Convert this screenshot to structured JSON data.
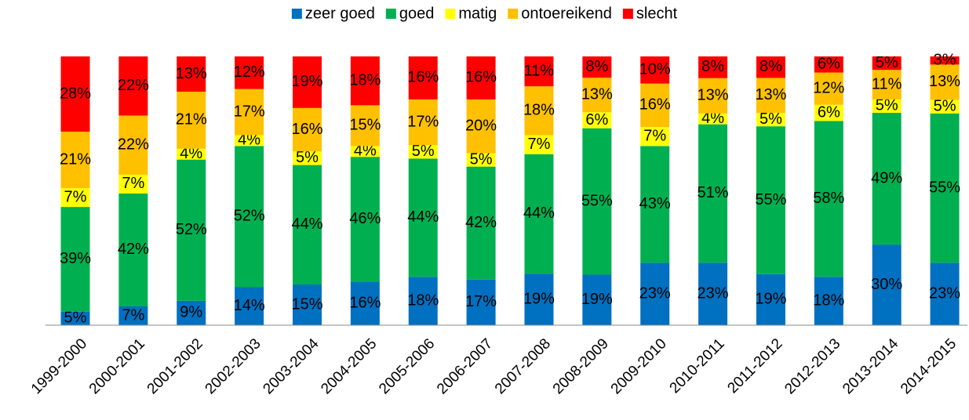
{
  "chart_data": {
    "type": "bar",
    "stacking": "percent",
    "categories": [
      "1999-2000",
      "2000-2001",
      "2001-2002",
      "2002-2003",
      "2003-2004",
      "2004-2005",
      "2005-2006",
      "2006-2007",
      "2007-2008",
      "2008-2009",
      "2009-2010",
      "2010-2011",
      "2011-2012",
      "2012-2013",
      "2013-2014",
      "2014-2015"
    ],
    "series": [
      {
        "name": "zeer goed",
        "color": "#0070c0",
        "values": [
          5,
          7,
          9,
          14,
          15,
          16,
          18,
          17,
          19,
          19,
          23,
          23,
          19,
          18,
          30,
          23
        ],
        "value_labels": [
          "5%",
          "7%",
          "9%",
          "14%",
          "15%",
          "16%",
          "18%",
          "17%",
          "19%",
          "19%",
          "23%",
          "23%",
          "19%",
          "18%",
          "30%",
          "23%"
        ]
      },
      {
        "name": "goed",
        "color": "#00b050",
        "values": [
          39,
          42,
          52,
          52,
          44,
          46,
          44,
          42,
          44,
          55,
          43,
          51,
          55,
          58,
          49,
          55
        ],
        "value_labels": [
          "39%",
          "42%",
          "52%",
          "52%",
          "44%",
          "46%",
          "44%",
          "42%",
          "44%",
          "55%",
          "43%",
          "51%",
          "55%",
          "58%",
          "49%",
          "55%"
        ]
      },
      {
        "name": "matig",
        "color": "#ffff00",
        "values": [
          7,
          7,
          4,
          4,
          5,
          4,
          5,
          5,
          7,
          6,
          7,
          4,
          5,
          6,
          5,
          5
        ],
        "value_labels": [
          "7%",
          "7%",
          "4%",
          "4%",
          "5%",
          "4%",
          "5%",
          "5%",
          "7%",
          "6%",
          "7%",
          "4%",
          "5%",
          "6%",
          "5%",
          "5%"
        ]
      },
      {
        "name": "ontoereikend",
        "color": "#ffc000",
        "values": [
          21,
          22,
          21,
          17,
          16,
          15,
          17,
          20,
          18,
          13,
          16,
          13,
          13,
          12,
          11,
          13
        ],
        "value_labels": [
          "21%",
          "22%",
          "21%",
          "17%",
          "16%",
          "15%",
          "17%",
          "20%",
          "18%",
          "13%",
          "16%",
          "13%",
          "13%",
          "12%",
          "11%",
          "13%"
        ]
      },
      {
        "name": "slecht",
        "color": "#ff0000",
        "values": [
          28,
          22,
          13,
          12,
          19,
          18,
          16,
          16,
          11,
          8,
          10,
          8,
          8,
          6,
          5,
          3
        ],
        "value_labels": [
          "28%",
          "22%",
          "13%",
          "12%",
          "19%",
          "18%",
          "16%",
          "16%",
          "11%",
          "8%",
          "10%",
          "8%",
          "8%",
          "6%",
          "5%",
          "3%"
        ]
      }
    ]
  }
}
